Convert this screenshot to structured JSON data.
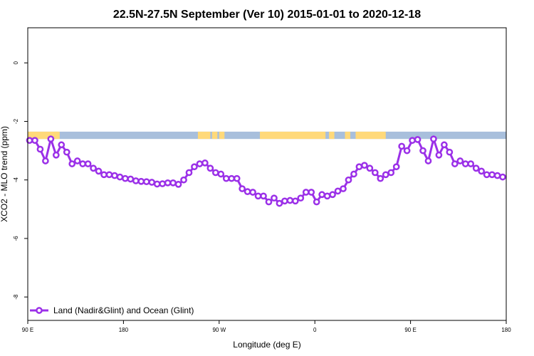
{
  "chart_data": {
    "type": "line",
    "title": "22.5N-27.5N September (Ver 10)   2015-01-01 to 2020-12-18",
    "xlabel": "Longitude (deg E)",
    "ylabel": "XCO2 - MLO trend (ppm)",
    "xlim": [
      -90,
      180
    ],
    "ylim": [
      -8.8,
      1.2
    ],
    "x_ticks": [
      {
        "value": -90,
        "label": "90 E"
      },
      {
        "value": -36,
        "label": "180"
      },
      {
        "value": 18,
        "label": "90 W"
      },
      {
        "value": 72,
        "label": "0"
      },
      {
        "value": 126,
        "label": "90 E"
      },
      {
        "value": 180,
        "label": "180"
      }
    ],
    "y_ticks": [
      {
        "value": 0,
        "label": "0"
      },
      {
        "value": -2,
        "label": "-2"
      },
      {
        "value": -4,
        "label": "-4"
      },
      {
        "value": -6,
        "label": "-6"
      },
      {
        "value": -8,
        "label": "-8"
      }
    ],
    "grid": false,
    "legend_position": "bottom-left",
    "land_ocean_strip": {
      "y_top": -2.35,
      "y_bottom": -2.6,
      "ocean_color": "#a8bfdc",
      "land_color": "#ffd97a",
      "land_spans": [
        [
          -90,
          -72
        ],
        [
          -75,
          -73
        ],
        [
          6,
          13
        ],
        [
          14,
          17
        ],
        [
          18,
          21
        ],
        [
          41,
          78
        ],
        [
          80,
          83
        ],
        [
          89,
          92
        ],
        [
          95,
          112
        ]
      ]
    },
    "series": [
      {
        "name": "Land (Nadir&Glint) and Ocean (Glint)",
        "color": "#9b30e8",
        "x": [
          -89,
          -86,
          -83,
          -80,
          -77,
          -74,
          -71,
          -68,
          -65,
          -62,
          -59,
          -56,
          -53,
          -50,
          -47,
          -44,
          -41,
          -38,
          -35,
          -32,
          -29,
          -26,
          -23,
          -20,
          -17,
          -14,
          -11,
          -8,
          -5,
          -2,
          1,
          4,
          7,
          10,
          13,
          16,
          19,
          22,
          25,
          28,
          31,
          34,
          37,
          40,
          43,
          46,
          49,
          52,
          55,
          58,
          61,
          64,
          67,
          70,
          73,
          76,
          79,
          82,
          85,
          88,
          91,
          94,
          97,
          100,
          103,
          106,
          109,
          112,
          115,
          118,
          121,
          124,
          127,
          130,
          133,
          136,
          139,
          142,
          145,
          148,
          151,
          154,
          157,
          160,
          163,
          166,
          169,
          172,
          175,
          178
        ],
        "y": [
          -2.65,
          -2.65,
          -2.95,
          -3.35,
          -2.6,
          -3.15,
          -2.8,
          -3.05,
          -3.45,
          -3.35,
          -3.45,
          -3.45,
          -3.6,
          -3.7,
          -3.82,
          -3.82,
          -3.85,
          -3.9,
          -3.95,
          -3.97,
          -4.03,
          -4.05,
          -4.06,
          -4.08,
          -4.14,
          -4.13,
          -4.1,
          -4.1,
          -4.15,
          -4.0,
          -3.75,
          -3.55,
          -3.45,
          -3.42,
          -3.6,
          -3.75,
          -3.8,
          -3.95,
          -3.95,
          -3.95,
          -4.3,
          -4.4,
          -4.42,
          -4.55,
          -4.55,
          -4.75,
          -4.62,
          -4.8,
          -4.72,
          -4.7,
          -4.72,
          -4.62,
          -4.42,
          -4.42,
          -4.75,
          -4.5,
          -4.55,
          -4.5,
          -4.38,
          -4.3,
          -4.0,
          -3.8,
          -3.55,
          -3.5,
          -3.6,
          -3.75,
          -3.95,
          -3.82,
          -3.75,
          -3.55,
          -2.85,
          -3.0,
          -2.65,
          -2.62,
          -3.0,
          -3.35,
          -2.6,
          -3.15,
          -2.8,
          -3.05,
          -3.45,
          -3.35,
          -3.45,
          -3.45,
          -3.6,
          -3.7,
          -3.82,
          -3.82,
          -3.85,
          -3.9
        ]
      }
    ]
  }
}
